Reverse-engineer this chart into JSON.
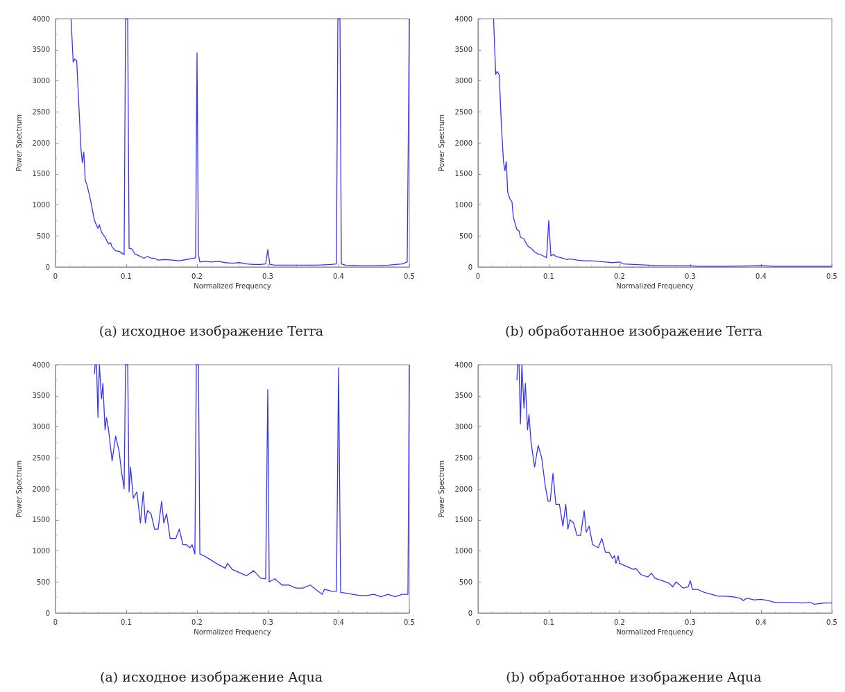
{
  "chart_data": [
    {
      "type": "line",
      "title": "(a) исходное изображение Terra",
      "xlabel": "Normalized Frequency",
      "ylabel": "Power Spectrum",
      "xlim": [
        0,
        0.5
      ],
      "xticks": [
        0,
        0.1,
        0.2,
        0.3,
        0.4,
        0.5
      ],
      "ylim": [
        0,
        4000
      ],
      "yticks": [
        0,
        500,
        1000,
        1500,
        2000,
        2500,
        3000,
        3500,
        4000
      ],
      "grid": false,
      "marker": "none",
      "line_style": "solid",
      "series": [
        {
          "color": "#3333ff",
          "x": [
            0.022,
            0.025,
            0.027,
            0.03,
            0.033,
            0.036,
            0.038,
            0.04,
            0.042,
            0.045,
            0.05,
            0.055,
            0.06,
            0.062,
            0.065,
            0.07,
            0.075,
            0.078,
            0.08,
            0.085,
            0.09,
            0.097,
            0.099,
            0.102,
            0.104,
            0.108,
            0.112,
            0.12,
            0.125,
            0.13,
            0.135,
            0.14,
            0.145,
            0.155,
            0.165,
            0.175,
            0.185,
            0.195,
            0.198,
            0.2,
            0.202,
            0.204,
            0.21,
            0.22,
            0.23,
            0.24,
            0.25,
            0.26,
            0.27,
            0.28,
            0.29,
            0.297,
            0.3,
            0.303,
            0.31,
            0.33,
            0.35,
            0.37,
            0.39,
            0.397,
            0.399,
            0.402,
            0.404,
            0.41,
            0.43,
            0.45,
            0.47,
            0.49,
            0.497,
            0.5
          ],
          "values": [
            4000,
            3300,
            3350,
            3320,
            2600,
            1900,
            1680,
            1850,
            1400,
            1300,
            1050,
            750,
            620,
            680,
            560,
            480,
            370,
            390,
            320,
            260,
            250,
            200,
            4000,
            4000,
            300,
            290,
            210,
            170,
            140,
            170,
            140,
            140,
            110,
            120,
            110,
            100,
            120,
            140,
            150,
            3450,
            200,
            80,
            90,
            80,
            90,
            70,
            60,
            70,
            50,
            40,
            40,
            50,
            280,
            40,
            30,
            30,
            30,
            30,
            40,
            50,
            4000,
            4000,
            50,
            30,
            20,
            20,
            30,
            50,
            80,
            4000
          ]
        }
      ]
    },
    {
      "type": "line",
      "title": "(b) обработанное изображение Terra",
      "xlabel": "Normalized Frequency",
      "ylabel": "Power Spectrum",
      "xlim": [
        0,
        0.5
      ],
      "xticks": [
        0,
        0.1,
        0.2,
        0.3,
        0.4,
        0.5
      ],
      "ylim": [
        0,
        4000
      ],
      "yticks": [
        0,
        500,
        1000,
        1500,
        2000,
        2500,
        3000,
        3500,
        4000
      ],
      "grid": false,
      "marker": "none",
      "line_style": "solid",
      "series": [
        {
          "color": "#3333ff",
          "x": [
            0.022,
            0.025,
            0.027,
            0.03,
            0.033,
            0.036,
            0.038,
            0.04,
            0.042,
            0.045,
            0.048,
            0.05,
            0.055,
            0.058,
            0.06,
            0.065,
            0.07,
            0.075,
            0.08,
            0.085,
            0.09,
            0.097,
            0.1,
            0.103,
            0.107,
            0.11,
            0.12,
            0.125,
            0.13,
            0.14,
            0.15,
            0.16,
            0.17,
            0.18,
            0.19,
            0.2,
            0.205,
            0.22,
            0.24,
            0.26,
            0.28,
            0.3,
            0.31,
            0.35,
            0.4,
            0.42,
            0.45,
            0.5
          ],
          "values": [
            4000,
            3100,
            3150,
            3100,
            2300,
            1700,
            1550,
            1700,
            1200,
            1100,
            1050,
            800,
            600,
            580,
            480,
            450,
            340,
            300,
            240,
            210,
            190,
            150,
            750,
            180,
            200,
            170,
            140,
            120,
            130,
            110,
            100,
            100,
            90,
            80,
            70,
            80,
            50,
            40,
            30,
            20,
            20,
            20,
            10,
            10,
            20,
            10,
            10,
            10
          ]
        }
      ]
    },
    {
      "type": "line",
      "title": "(a) исходное изображение Aqua",
      "xlabel": "Normalized Frequency",
      "ylabel": "Power Spectrum",
      "xlim": [
        0,
        0.5
      ],
      "xticks": [
        0,
        0.1,
        0.2,
        0.3,
        0.4,
        0.5
      ],
      "ylim": [
        0,
        4000
      ],
      "yticks": [
        0,
        500,
        1000,
        1500,
        2000,
        2500,
        3000,
        3500,
        4000
      ],
      "grid": false,
      "marker": "none",
      "line_style": "solid",
      "series": [
        {
          "color": "#3333ff",
          "x": [
            0.055,
            0.056,
            0.058,
            0.06,
            0.062,
            0.065,
            0.067,
            0.07,
            0.072,
            0.075,
            0.08,
            0.085,
            0.09,
            0.093,
            0.097,
            0.099,
            0.102,
            0.104,
            0.106,
            0.11,
            0.115,
            0.12,
            0.124,
            0.127,
            0.13,
            0.135,
            0.14,
            0.145,
            0.15,
            0.153,
            0.157,
            0.162,
            0.17,
            0.175,
            0.18,
            0.185,
            0.19,
            0.193,
            0.197,
            0.199,
            0.202,
            0.204,
            0.21,
            0.22,
            0.23,
            0.24,
            0.243,
            0.25,
            0.26,
            0.27,
            0.28,
            0.29,
            0.297,
            0.3,
            0.302,
            0.31,
            0.32,
            0.33,
            0.34,
            0.35,
            0.36,
            0.37,
            0.377,
            0.38,
            0.39,
            0.397,
            0.4,
            0.403,
            0.41,
            0.42,
            0.43,
            0.44,
            0.45,
            0.46,
            0.47,
            0.48,
            0.49,
            0.498,
            0.5
          ],
          "values": [
            3850,
            4000,
            4000,
            3150,
            4000,
            3450,
            3700,
            2950,
            3150,
            2950,
            2450,
            2850,
            2600,
            2300,
            2000,
            4000,
            4000,
            1950,
            2350,
            1850,
            1950,
            1450,
            1950,
            1450,
            1650,
            1600,
            1350,
            1350,
            1800,
            1450,
            1600,
            1200,
            1200,
            1350,
            1100,
            1100,
            1050,
            1100,
            950,
            4000,
            4000,
            950,
            920,
            850,
            780,
            720,
            800,
            700,
            650,
            600,
            680,
            560,
            550,
            3600,
            500,
            550,
            450,
            450,
            400,
            400,
            450,
            360,
            300,
            380,
            350,
            350,
            3950,
            330,
            320,
            300,
            280,
            280,
            300,
            260,
            300,
            260,
            300,
            300,
            4000
          ]
        }
      ]
    },
    {
      "type": "line",
      "title": "(b) обработанное изображение Aqua",
      "xlabel": "Normalized Frequency",
      "ylabel": "Power Spectrum",
      "xlim": [
        0,
        0.5
      ],
      "xticks": [
        0,
        0.1,
        0.2,
        0.3,
        0.4,
        0.5
      ],
      "ylim": [
        0,
        4000
      ],
      "yticks": [
        0,
        500,
        1000,
        1500,
        2000,
        2500,
        3000,
        3500,
        4000
      ],
      "grid": false,
      "marker": "none",
      "line_style": "solid",
      "series": [
        {
          "color": "#3333ff",
          "x": [
            0.055,
            0.056,
            0.058,
            0.06,
            0.062,
            0.065,
            0.067,
            0.07,
            0.072,
            0.075,
            0.08,
            0.085,
            0.09,
            0.095,
            0.099,
            0.102,
            0.106,
            0.11,
            0.115,
            0.12,
            0.124,
            0.127,
            0.13,
            0.135,
            0.14,
            0.145,
            0.15,
            0.153,
            0.157,
            0.162,
            0.17,
            0.175,
            0.18,
            0.185,
            0.19,
            0.193,
            0.195,
            0.198,
            0.2,
            0.21,
            0.22,
            0.223,
            0.23,
            0.24,
            0.245,
            0.25,
            0.26,
            0.27,
            0.275,
            0.28,
            0.29,
            0.297,
            0.3,
            0.303,
            0.31,
            0.32,
            0.33,
            0.34,
            0.35,
            0.36,
            0.37,
            0.375,
            0.38,
            0.39,
            0.4,
            0.41,
            0.42,
            0.44,
            0.46,
            0.47,
            0.475,
            0.49,
            0.5
          ],
          "values": [
            3750,
            4000,
            4000,
            3050,
            4000,
            3300,
            3700,
            2950,
            3200,
            2750,
            2350,
            2700,
            2500,
            2050,
            1800,
            1800,
            2250,
            1750,
            1750,
            1400,
            1750,
            1350,
            1500,
            1450,
            1250,
            1250,
            1650,
            1300,
            1400,
            1100,
            1050,
            1200,
            980,
            980,
            880,
            920,
            800,
            920,
            800,
            750,
            700,
            720,
            620,
            580,
            640,
            560,
            520,
            480,
            420,
            500,
            400,
            420,
            520,
            380,
            380,
            330,
            300,
            270,
            270,
            260,
            240,
            200,
            240,
            210,
            220,
            200,
            170,
            170,
            160,
            170,
            140,
            160,
            160
          ]
        }
      ]
    }
  ]
}
